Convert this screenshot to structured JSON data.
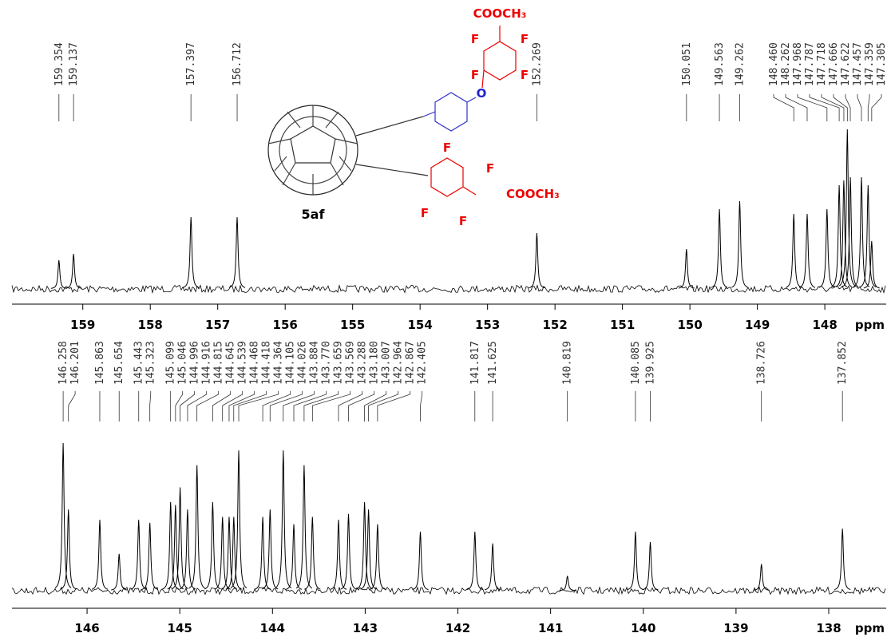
{
  "chart_data": [
    {
      "type": "spectrum",
      "x_label": "ppm",
      "xlim": [
        160.05,
        147.09
      ],
      "ylim": [
        0,
        100
      ],
      "xticks": [
        159,
        158,
        157,
        156,
        155,
        154,
        153,
        152,
        151,
        150,
        149,
        148
      ],
      "x": [
        159.354,
        159.137,
        157.397,
        156.712,
        152.269,
        150.051,
        149.563,
        149.262,
        148.46,
        148.262,
        147.968,
        147.787,
        147.718,
        147.666,
        147.622,
        147.457,
        147.359,
        147.305
      ],
      "x_labels": [
        "159.354",
        "159.137",
        "157.397",
        "156.712",
        "152.269",
        "150.051",
        "149.563",
        "149.262",
        "148.460",
        "148.262",
        "147.968",
        "147.787",
        "147.718",
        "147.666",
        "147.622",
        "147.457",
        "147.359",
        "147.305"
      ],
      "values": [
        18,
        22,
        45,
        45,
        35,
        25,
        50,
        55,
        47,
        47,
        50,
        65,
        68,
        100,
        70,
        70,
        65,
        30
      ],
      "color": "#000000"
    },
    {
      "type": "spectrum",
      "x_label": "ppm",
      "xlim": [
        146.81,
        137.38
      ],
      "ylim": [
        0,
        100
      ],
      "xticks": [
        146,
        145,
        144,
        143,
        142,
        141,
        140,
        139,
        138
      ],
      "x": [
        146.258,
        146.201,
        145.863,
        145.654,
        145.443,
        145.323,
        145.099,
        145.046,
        144.996,
        144.916,
        144.815,
        144.645,
        144.539,
        144.468,
        144.418,
        144.364,
        144.105,
        144.026,
        143.884,
        143.77,
        143.659,
        143.569,
        143.288,
        143.18,
        143.007,
        142.964,
        142.867,
        142.405,
        141.817,
        141.625,
        140.819,
        140.085,
        139.925,
        138.726,
        137.852
      ],
      "x_labels": [
        "146.258",
        "146.201",
        "145.863",
        "145.654",
        "145.443",
        "145.323",
        "145.099",
        "145.046",
        "144.996",
        "144.916",
        "144.815",
        "144.645",
        "144.539",
        "144.468",
        "144.418",
        "144.364",
        "144.105",
        "144.026",
        "143.884",
        "143.770",
        "143.659",
        "143.569",
        "143.288",
        "143.180",
        "143.007",
        "142.964",
        "142.867",
        "142.405",
        "141.817",
        "141.625",
        "140.819",
        "140.085",
        "139.925",
        "138.726",
        "137.852"
      ],
      "values": [
        100,
        55,
        48,
        25,
        48,
        46,
        60,
        58,
        70,
        55,
        85,
        60,
        50,
        50,
        50,
        95,
        50,
        55,
        95,
        45,
        85,
        50,
        48,
        52,
        60,
        55,
        45,
        40,
        40,
        32,
        10,
        40,
        33,
        18,
        42
      ],
      "color": "#000000"
    }
  ],
  "structure": {
    "compound": "5af",
    "groups": [
      "COOCH₃",
      "COOCH₃"
    ],
    "atoms": [
      "F",
      "F",
      "F",
      "F",
      "O",
      "F",
      "F",
      "F",
      "F"
    ]
  }
}
